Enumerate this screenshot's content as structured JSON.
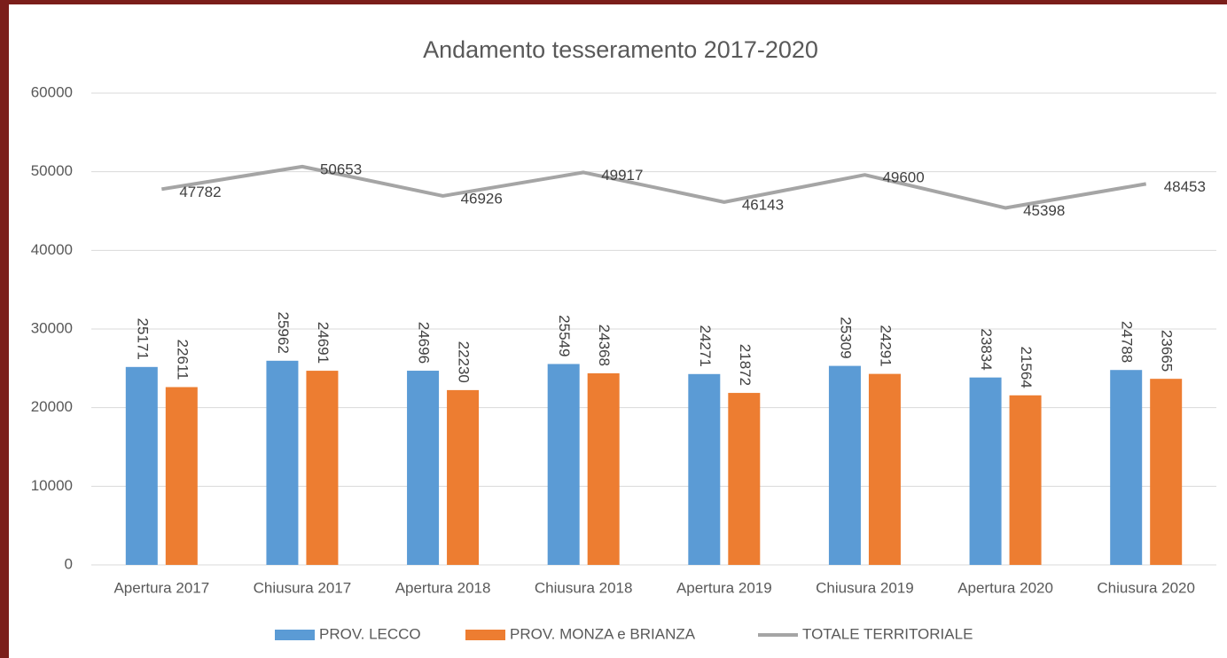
{
  "chart_data": {
    "type": "bar",
    "title": "Andamento tesseramento 2017-2020",
    "categories": [
      "Apertura 2017",
      "Chiusura 2017",
      "Apertura 2018",
      "Chiusura 2018",
      "Apertura 2019",
      "Chiusura 2019",
      "Apertura 2020",
      "Chiusura 2020"
    ],
    "series": [
      {
        "name": "PROV. LECCO",
        "color": "#5b9bd5",
        "values": [
          25171,
          25962,
          24696,
          25549,
          24271,
          25309,
          23834,
          24788
        ]
      },
      {
        "name": "PROV. MONZA e BRIANZA",
        "color": "#ed7d31",
        "values": [
          22611,
          24691,
          22230,
          24368,
          21872,
          24291,
          21564,
          23665
        ]
      },
      {
        "name": "TOTALE TERRITORIALE",
        "color": "#a5a5a5",
        "type": "line",
        "values": [
          47782,
          50653,
          46926,
          49917,
          46143,
          49600,
          45398,
          48453
        ]
      }
    ],
    "ylim": [
      0,
      60000
    ],
    "yticks": [
      0,
      10000,
      20000,
      30000,
      40000,
      50000,
      60000
    ],
    "grid": true,
    "legend": "bottom"
  }
}
